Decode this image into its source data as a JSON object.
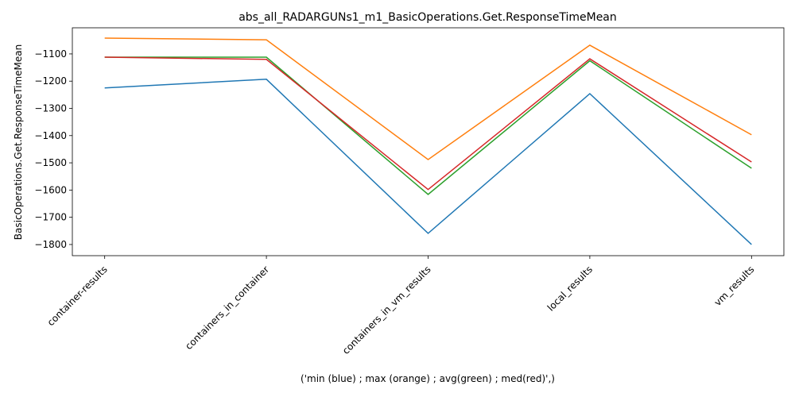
{
  "chart_data": {
    "type": "line",
    "title": "abs_all_RADARGUNs1_m1_BasicOperations.Get.ResponseTimeMean",
    "xlabel": "('min (blue) ; max (orange) ; avg(green) ; med(red)',)",
    "ylabel": "BasicOperations.Get.ResponseTimeMean",
    "categories": [
      "container-results",
      "containers_in_container",
      "containers_in_vm_results",
      "local_results",
      "vm_results"
    ],
    "series": [
      {
        "color": "#1f77b4",
        "values": [
          -1225,
          -1193,
          -1759,
          -1246,
          -1800
        ]
      },
      {
        "color": "#ff7f0e",
        "values": [
          -1042,
          -1048,
          -1488,
          -1068,
          -1397
        ]
      },
      {
        "color": "#2ca02c",
        "values": [
          -1112,
          -1112,
          -1616,
          -1125,
          -1520
        ]
      },
      {
        "color": "#d62728",
        "values": [
          -1112,
          -1120,
          -1598,
          -1118,
          -1497
        ]
      }
    ],
    "ylim": [
      -1841,
      -1004
    ],
    "yticks": [
      {
        "value": -1100,
        "label": "−1100"
      },
      {
        "value": -1200,
        "label": "−1200"
      },
      {
        "value": -1300,
        "label": "−1300"
      },
      {
        "value": -1400,
        "label": "−1400"
      },
      {
        "value": -1500,
        "label": "−1500"
      },
      {
        "value": -1600,
        "label": "−1600"
      },
      {
        "value": -1700,
        "label": "−1700"
      },
      {
        "value": -1800,
        "label": "−1800"
      }
    ]
  }
}
